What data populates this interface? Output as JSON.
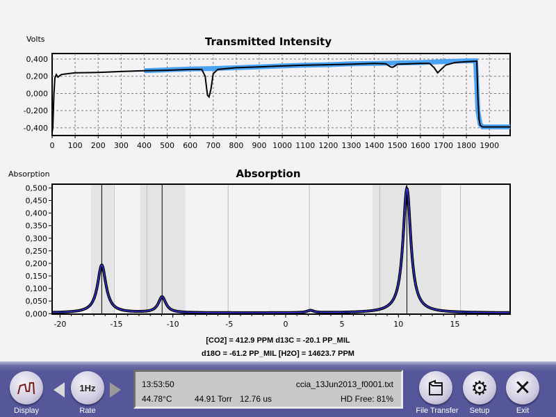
{
  "chart_data": [
    {
      "type": "line",
      "title": "Transmitted Intensity",
      "ylabel": "Volts",
      "xlabel": "",
      "xlim": [
        0,
        1990
      ],
      "ylim": [
        -0.49,
        0.465
      ],
      "grid": true,
      "xticks": [
        "0",
        "100",
        "200",
        "300",
        "400",
        "500",
        "600",
        "700",
        "800",
        "900",
        "1000",
        "1100",
        "1200",
        "1300",
        "1400",
        "1500",
        "1600",
        "1700",
        "1800",
        "1900"
      ],
      "yticks": [
        "-0,400",
        "-0,200",
        "0,000",
        "0,200",
        "0,400"
      ],
      "series": [
        {
          "color": "#000000",
          "x": [
            0,
            3,
            8,
            12,
            18,
            25,
            30,
            40,
            50,
            100,
            200,
            300,
            400,
            500,
            600,
            650,
            665,
            675,
            682,
            690,
            700,
            720,
            800,
            900,
            1000,
            1100,
            1200,
            1300,
            1400,
            1450,
            1470,
            1480,
            1490,
            1500,
            1600,
            1640,
            1660,
            1675,
            1690,
            1710,
            1750,
            1800,
            1840,
            1845,
            1850,
            1855,
            1860,
            1870,
            1990
          ],
          "y": [
            -0.45,
            -0.4,
            0.0,
            0.18,
            0.22,
            0.19,
            0.2,
            0.22,
            0.225,
            0.24,
            0.245,
            0.255,
            0.265,
            0.27,
            0.28,
            0.28,
            0.2,
            -0.02,
            -0.04,
            0.05,
            0.23,
            0.28,
            0.3,
            0.31,
            0.32,
            0.33,
            0.335,
            0.34,
            0.35,
            0.345,
            0.31,
            0.305,
            0.32,
            0.34,
            0.35,
            0.35,
            0.3,
            0.24,
            0.28,
            0.33,
            0.36,
            0.37,
            0.375,
            0.375,
            -0.05,
            -0.3,
            -0.37,
            -0.39,
            -0.39
          ]
        },
        {
          "color": "#4aa3f5",
          "x": [
            400,
            500,
            600,
            700,
            800,
            900,
            1000,
            1100,
            1200,
            1300,
            1400,
            1500,
            1600,
            1700,
            1800,
            1840,
            1845,
            1850,
            1860,
            1870,
            1990
          ],
          "y": [
            0.265,
            0.275,
            0.285,
            0.29,
            0.3,
            0.31,
            0.32,
            0.33,
            0.335,
            0.345,
            0.35,
            0.355,
            0.36,
            0.37,
            0.38,
            0.38,
            0.1,
            -0.2,
            -0.36,
            -0.39,
            -0.39
          ]
        }
      ]
    },
    {
      "type": "line",
      "title": "Absorption",
      "ylabel": "Absorption",
      "xlabel": "",
      "xlim": [
        -20.7,
        19.9
      ],
      "ylim": [
        -0.002,
        0.515
      ],
      "grid": false,
      "xticks": [
        "-20",
        "-15",
        "-10",
        "-5",
        "0",
        "5",
        "10",
        "15"
      ],
      "yticks": [
        "0,000",
        "0,050",
        "0,100",
        "0,150",
        "0,200",
        "0,250",
        "0,300",
        "0,350",
        "0,400",
        "0,450",
        "0,500"
      ],
      "peaks": [
        {
          "center": -16.3,
          "height": 0.19,
          "width": 0.45
        },
        {
          "center": -10.95,
          "height": 0.063,
          "width": 0.4
        },
        {
          "center": 2.2,
          "height": 0.009,
          "width": 0.35
        },
        {
          "center": 10.75,
          "height": 0.495,
          "width": 0.42
        }
      ],
      "baseline": 0.003,
      "fit_color": "#3a3aff",
      "data_color": "#000000",
      "shaded_bands": [
        [
          -17.25,
          -15.3
        ],
        [
          -12.9,
          -8.9
        ],
        [
          7.7,
          13.8
        ]
      ],
      "marker_lines": [
        -16.3,
        -10.95,
        10.75
      ],
      "light_lines": [
        -15.2,
        -12.3,
        -5.1,
        2.1,
        8.35,
        15.5
      ]
    }
  ],
  "results": {
    "line1": "[CO2] = 412.9 PPM   d13C = -20.1 PP_MIL",
    "line2": "d18O = -61.2 PP_MIL   [H2O] = 14623.7 PPM"
  },
  "toolbar": {
    "display_label": "Display",
    "rate_label": "Rate",
    "rate_value": "1Hz",
    "file_transfer_label": "File Transfer",
    "setup_label": "Setup",
    "exit_label": "Exit"
  },
  "status": {
    "time": "13:53:50",
    "filename": "ccia_13Jun2013_f0001.txt",
    "temperature": "44.78",
    "temp_unit": "°C",
    "pressure": "44.91 Torr",
    "tau": "12.76 us",
    "hd_free": "HD Free: 81%"
  }
}
